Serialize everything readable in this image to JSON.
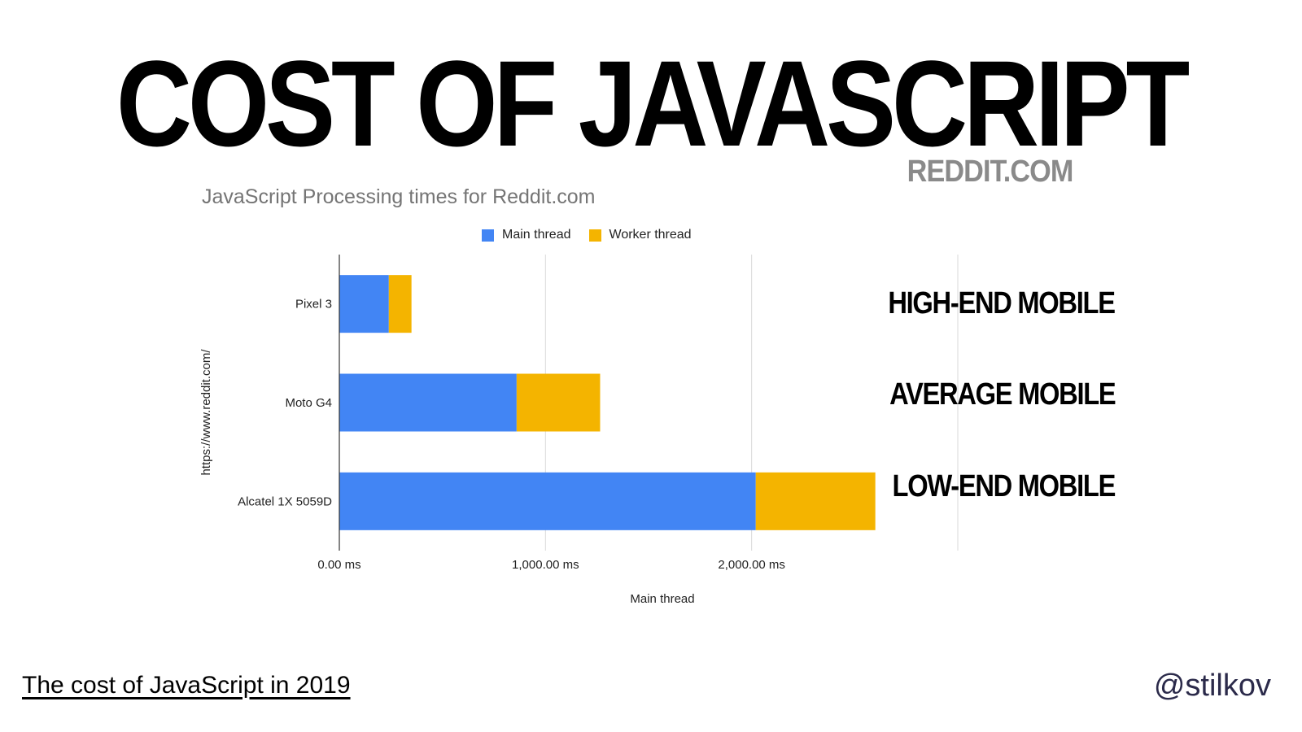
{
  "slide": {
    "title": "COST OF JAVASCRIPT",
    "subtitle": "REDDIT.COM",
    "footer_link": "The cost of JavaScript in 2019",
    "handle": "@stilkov"
  },
  "segment_labels": [
    "HIGH-END MOBILE",
    "AVERAGE MOBILE",
    "LOW-END MOBILE"
  ],
  "chart_data": {
    "type": "bar",
    "orientation": "horizontal",
    "stacked": true,
    "title": "JavaScript Processing times for Reddit.com",
    "xlabel": "Main thread",
    "ylabel": "https://www.reddit.com/",
    "categories": [
      "Pixel 3",
      "Moto G4",
      "Alcatel 1X 5059D"
    ],
    "series": [
      {
        "name": "Main thread",
        "values": [
          240,
          860,
          2020
        ],
        "color": "#4285f4"
      },
      {
        "name": "Worker thread",
        "values": [
          110,
          405,
          580
        ],
        "color": "#f4b400"
      }
    ],
    "xlim": [
      0,
      3000
    ],
    "xticks": [
      0,
      1000,
      2000,
      3000
    ],
    "xtick_labels": [
      "0.00 ms",
      "1,000.00 ms",
      "2,000.00 ms",
      ""
    ],
    "grid": true,
    "legend": "top-center"
  }
}
